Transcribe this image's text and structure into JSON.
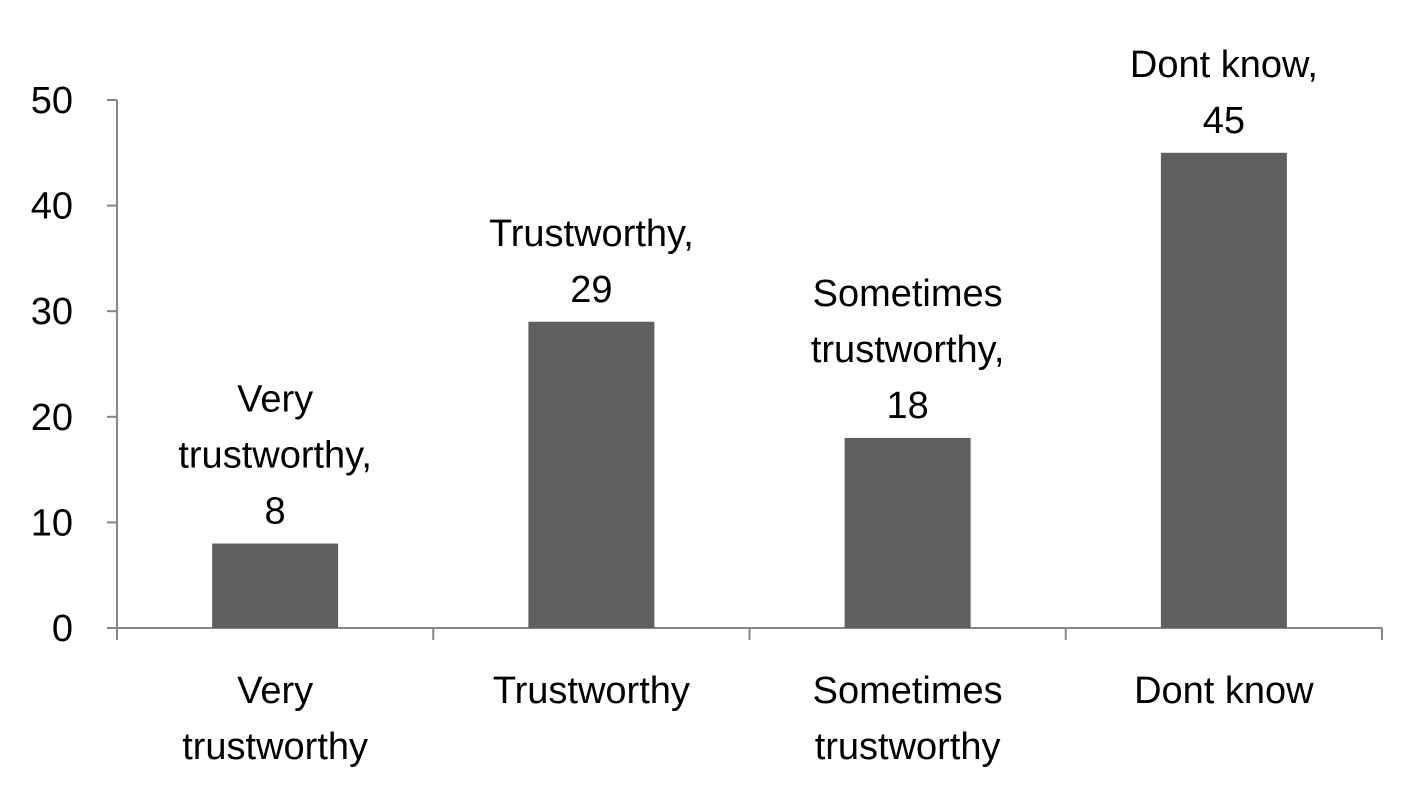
{
  "chart_data": {
    "type": "bar",
    "categories": [
      [
        "Very",
        "trustworthy"
      ],
      [
        "Trustworthy"
      ],
      [
        "Sometimes",
        "trustworthy"
      ],
      [
        "Dont know"
      ]
    ],
    "values": [
      8,
      29,
      18,
      45
    ],
    "data_labels": [
      [
        "Very",
        "trustworthy,",
        "8"
      ],
      [
        "Trustworthy,",
        "29"
      ],
      [
        "Sometimes",
        "trustworthy,",
        "18"
      ],
      [
        "Dont know,",
        "45"
      ]
    ],
    "title": "",
    "xlabel": "",
    "ylabel": "",
    "ylim": [
      0,
      50
    ],
    "yticks": [
      0,
      10,
      20,
      30,
      40,
      50
    ],
    "grid": false,
    "legend": "none",
    "bar_color": "#5f5f5f",
    "axis_color": "#868686"
  }
}
